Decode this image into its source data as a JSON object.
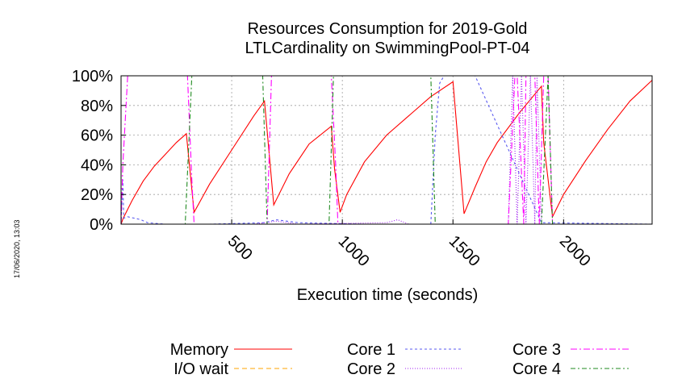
{
  "chart_data": {
    "type": "line",
    "title": [
      "Resources Consumption for 2019-Gold",
      "LTLCardinality on SwimmingPool-PT-04"
    ],
    "xlabel": "Execution time (seconds)",
    "ylabel": "",
    "xlim": [
      0,
      2400
    ],
    "ylim": [
      0,
      100
    ],
    "x_ticks": [
      500,
      1000,
      1500,
      2000
    ],
    "y_ticks": [
      {
        "value": 0,
        "label": "0%"
      },
      {
        "value": 20,
        "label": "20%"
      },
      {
        "value": 40,
        "label": "40%"
      },
      {
        "value": 60,
        "label": "60%"
      },
      {
        "value": 80,
        "label": "80%"
      },
      {
        "value": 100,
        "label": "100%"
      }
    ],
    "grid": true,
    "legend_position": "bottom",
    "timestamp": "17/06/2020, 13:03",
    "series": [
      {
        "name": "Memory",
        "color": "#ff0000",
        "dash": "",
        "x": [
          0,
          10,
          50,
          100,
          150,
          200,
          250,
          295,
          330,
          400,
          500,
          600,
          648,
          690,
          760,
          850,
          950,
          965,
          990,
          1020,
          1100,
          1200,
          1300,
          1400,
          1500,
          1550,
          1600,
          1650,
          1700,
          1800,
          1900,
          1910,
          1950,
          2000,
          2100,
          2200,
          2300,
          2400
        ],
        "y": [
          0,
          4,
          16,
          29,
          39,
          47,
          55,
          61,
          8,
          27,
          50,
          73,
          83,
          13,
          34,
          54,
          66,
          37,
          8,
          20,
          42,
          60,
          73,
          86,
          96,
          7,
          25,
          42,
          55,
          75,
          93,
          55,
          5,
          20,
          43,
          64,
          83,
          97
        ]
      },
      {
        "name": "I/O wait",
        "color": "#ffa500",
        "dash": "6,4",
        "x": [
          0,
          2400
        ],
        "y": [
          0,
          0
        ]
      },
      {
        "name": "Core 1",
        "color": "#5a5af0",
        "dash": "3,3",
        "x": [
          0,
          8,
          12,
          30,
          60,
          90,
          120,
          200,
          400,
          650,
          700,
          750,
          800,
          1100,
          1400,
          1420,
          1440,
          1460,
          1475,
          1500,
          1520,
          1600,
          1900,
          2400
        ],
        "y": [
          0,
          30,
          4,
          5,
          4,
          3,
          1,
          0,
          0,
          1,
          3,
          2,
          1,
          0,
          0,
          60,
          95,
          100,
          100,
          100,
          100,
          100,
          1,
          0
        ]
      },
      {
        "name": "Core 2",
        "color": "#a020f0",
        "dash": "1,2",
        "x": [
          0,
          600,
          700,
          800,
          1200,
          1250,
          1300,
          1750,
          1770,
          1790,
          1810,
          1830,
          1850,
          1870,
          1880,
          1900,
          2400
        ],
        "y": [
          0,
          0,
          2,
          0,
          1,
          3,
          0,
          0,
          100,
          0,
          100,
          0,
          100,
          0,
          100,
          0,
          0
        ]
      },
      {
        "name": "Core 3",
        "color": "#ff00ff",
        "dash": "8,3,2,3",
        "x": [
          0,
          8,
          30,
          40,
          300,
          320,
          330,
          340,
          660,
          680,
          690,
          950,
          970,
          980,
          990,
          1750,
          1780,
          1790,
          1820,
          1830,
          1870,
          1890,
          1910,
          1930,
          1950,
          2400
        ],
        "y": [
          0,
          40,
          100,
          100,
          100,
          30,
          0,
          0,
          0,
          100,
          100,
          100,
          40,
          0,
          0,
          0,
          100,
          100,
          0,
          100,
          100,
          0,
          100,
          100,
          0,
          0
        ]
      },
      {
        "name": "Core 4",
        "color": "#228b22",
        "dash": "6,3,2,3",
        "x": [
          0,
          290,
          320,
          330,
          640,
          660,
          680,
          940,
          960,
          990,
          1000,
          1400,
          1420,
          1440,
          1450,
          1900,
          1930,
          1950,
          2400
        ],
        "y": [
          0,
          0,
          100,
          100,
          100,
          0,
          0,
          0,
          100,
          100,
          100,
          100,
          0,
          0,
          0,
          0,
          100,
          0,
          0
        ]
      }
    ]
  }
}
